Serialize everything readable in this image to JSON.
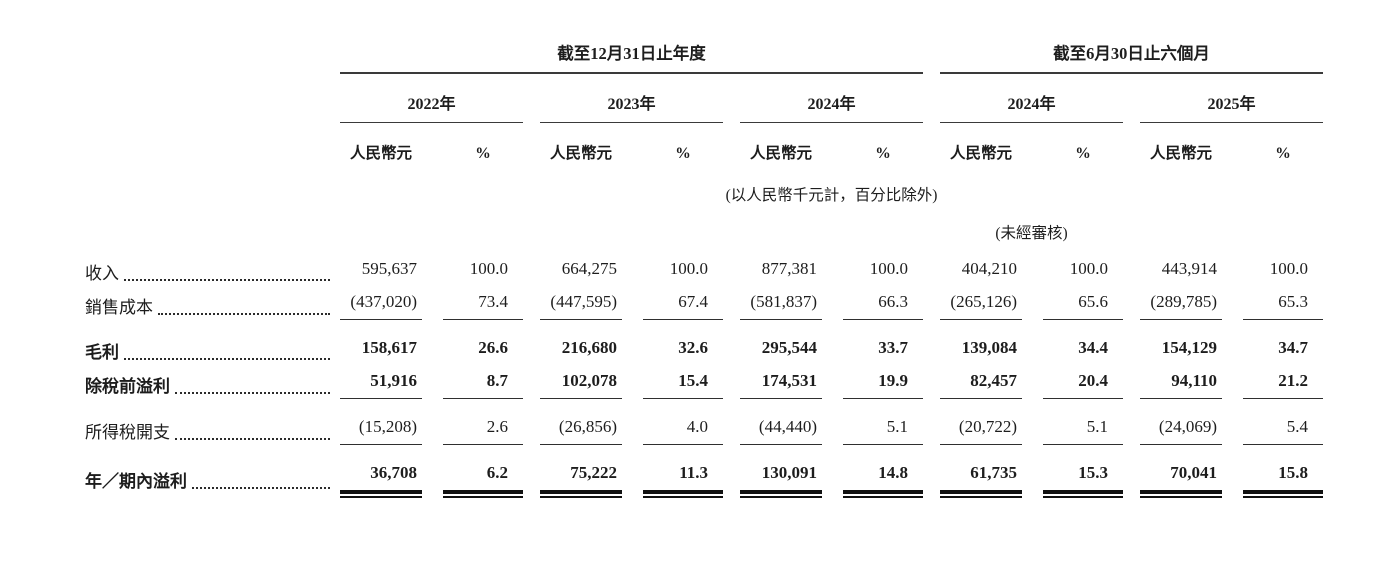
{
  "page": {
    "background": "#ffffff",
    "text_color": "#1d1d1d",
    "rule_color": "#2f2f2f"
  },
  "table": {
    "col_groups": [
      {
        "title": "截至12月31日止年度",
        "span": 3
      },
      {
        "title": "截至6月30日止六個月",
        "span": 2
      }
    ],
    "years": [
      "2022年",
      "2023年",
      "2024年",
      "2024年",
      "2025年"
    ],
    "unit_label": "人民幣元",
    "pct_label": "%",
    "note": "(以人民幣千元計，百分比除外)",
    "unaudited_note": "(未經審核)",
    "rows": [
      {
        "label": "收入",
        "bold": false,
        "rule": "none",
        "values": [
          [
            "595,637",
            "100.0"
          ],
          [
            "664,275",
            "100.0"
          ],
          [
            "877,381",
            "100.0"
          ],
          [
            "404,210",
            "100.0"
          ],
          [
            "443,914",
            "100.0"
          ]
        ]
      },
      {
        "label": "銷售成本",
        "bold": false,
        "rule": "single",
        "values": [
          [
            "(437,020)",
            "73.4"
          ],
          [
            "(447,595)",
            "67.4"
          ],
          [
            "(581,837)",
            "66.3"
          ],
          [
            "(265,126)",
            "65.6"
          ],
          [
            "(289,785)",
            "65.3"
          ]
        ]
      },
      {
        "label": "毛利",
        "bold": true,
        "rule": "none",
        "values": [
          [
            "158,617",
            "26.6"
          ],
          [
            "216,680",
            "32.6"
          ],
          [
            "295,544",
            "33.7"
          ],
          [
            "139,084",
            "34.4"
          ],
          [
            "154,129",
            "34.7"
          ]
        ]
      },
      {
        "label": "除稅前溢利",
        "bold": true,
        "rule": "single",
        "values": [
          [
            "51,916",
            "8.7"
          ],
          [
            "102,078",
            "15.4"
          ],
          [
            "174,531",
            "19.9"
          ],
          [
            "82,457",
            "20.4"
          ],
          [
            "94,110",
            "21.2"
          ]
        ]
      },
      {
        "label": "所得稅開支",
        "bold": false,
        "rule": "single",
        "values": [
          [
            "(15,208)",
            "2.6"
          ],
          [
            "(26,856)",
            "4.0"
          ],
          [
            "(44,440)",
            "5.1"
          ],
          [
            "(20,722)",
            "5.1"
          ],
          [
            "(24,069)",
            "5.4"
          ]
        ]
      },
      {
        "label": "年／期內溢利",
        "bold": true,
        "rule": "double",
        "values": [
          [
            "36,708",
            "6.2"
          ],
          [
            "75,222",
            "11.3"
          ],
          [
            "130,091",
            "14.8"
          ],
          [
            "61,735",
            "15.3"
          ],
          [
            "70,041",
            "15.8"
          ]
        ]
      }
    ]
  }
}
